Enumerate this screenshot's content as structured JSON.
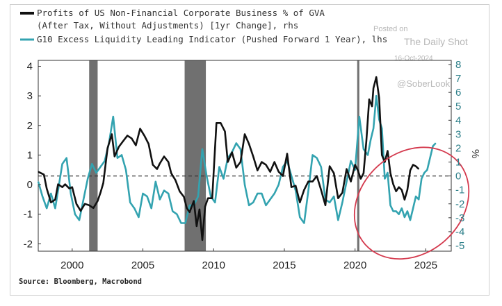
{
  "watermark": {
    "line1": "Posted on",
    "line2": "The Daily Shot",
    "line3": "16-Oct-2024",
    "handle": "@SoberLook"
  },
  "source": "Source: Bloomberg, Macrobond",
  "colors": {
    "profits": "#111111",
    "liquidity": "#33a3b0",
    "recession": "#707070",
    "highlight": "#d43a4e",
    "right_ticks": "#2b7e88"
  },
  "chart_data": {
    "type": "line",
    "xlim": [
      1997.6,
      2026.8
    ],
    "x_ticks": [
      "2000",
      "2005",
      "2010",
      "2015",
      "2020",
      "2025"
    ],
    "y_left": {
      "lim": [
        -2.25,
        4.2
      ],
      "ticks": [
        "-2",
        "-1",
        "0",
        "1",
        "2",
        "3",
        "4"
      ]
    },
    "y_right": {
      "lim": [
        -5.4,
        8.3
      ],
      "ticks": [
        "-5",
        "-4",
        "-3",
        "-2",
        "-1",
        "0",
        "1",
        "2",
        "3",
        "4",
        "5",
        "6",
        "7",
        "8"
      ]
    },
    "right_axis_symbol": "%",
    "reference_line": {
      "axis": "right",
      "value": 0,
      "style": "dashed"
    },
    "recession_bands": [
      [
        2001.2,
        2001.8
      ],
      [
        2007.95,
        2009.45
      ],
      [
        2020.15,
        2020.3
      ]
    ],
    "highlight_ellipse": {
      "center_x": 2024.0,
      "center_y_right": -1.95,
      "x_radius": 4.4,
      "y_radius_right": 3.6,
      "rotation_deg": -42
    },
    "series": [
      {
        "name": "Profits of US Non-Financial Corporate Business % of GVA",
        "name_line2": "(After Tax, Without Adjustments) [1yr Change], rhs",
        "axis": "right",
        "x": [
          1997.6,
          1998.0,
          1998.2,
          1998.5,
          1998.8,
          1999.0,
          1999.3,
          1999.5,
          1999.8,
          2000.0,
          2000.3,
          2000.6,
          2000.9,
          2001.2,
          2001.5,
          2001.8,
          2002.0,
          2002.2,
          2002.5,
          2002.8,
          2003.0,
          2003.3,
          2003.6,
          2003.9,
          2004.2,
          2004.5,
          2004.8,
          2005.1,
          2005.4,
          2005.7,
          2006.0,
          2006.2,
          2006.5,
          2006.8,
          2007.0,
          2007.3,
          2007.6,
          2007.9,
          2008.1,
          2008.3,
          2008.6,
          2008.8,
          2009.0,
          2009.2,
          2009.4,
          2009.6,
          2009.9,
          2010.2,
          2010.5,
          2010.8,
          2011.0,
          2011.3,
          2011.6,
          2011.9,
          2012.2,
          2012.5,
          2012.8,
          2013.1,
          2013.4,
          2013.7,
          2014.0,
          2014.3,
          2014.6,
          2014.9,
          2015.2,
          2015.5,
          2015.8,
          2016.1,
          2016.4,
          2016.7,
          2017.0,
          2017.3,
          2017.6,
          2017.9,
          2018.2,
          2018.5,
          2018.8,
          2019.1,
          2019.4,
          2019.7,
          2020.0,
          2020.2,
          2020.4,
          2020.6,
          2020.8,
          2021.0,
          2021.2,
          2021.3,
          2021.5,
          2021.7,
          2021.9,
          2022.1,
          2022.3,
          2022.5,
          2022.7,
          2022.9,
          2023.1,
          2023.3,
          2023.5,
          2023.7,
          2023.9,
          2024.1,
          2024.3,
          2024.5
        ],
        "y": [
          0.3,
          0.1,
          -0.9,
          -1.9,
          -1.7,
          -0.6,
          -0.8,
          -0.6,
          -0.9,
          -0.8,
          -2.0,
          -2.5,
          -2.0,
          -2.1,
          -2.3,
          -1.8,
          -1.2,
          -0.5,
          2.0,
          3.0,
          1.4,
          2.1,
          2.5,
          2.9,
          2.7,
          2.2,
          3.4,
          2.9,
          2.3,
          0.8,
          0.5,
          0.9,
          1.4,
          1.0,
          0.2,
          -0.3,
          -1.1,
          -1.5,
          -2.3,
          -2.6,
          -1.8,
          -3.6,
          -2.4,
          -4.6,
          -2.2,
          -1.6,
          -1.6,
          3.8,
          3.8,
          3.2,
          1.0,
          1.7,
          0.6,
          1.0,
          3.0,
          2.3,
          1.4,
          0.4,
          1.0,
          0.8,
          0.3,
          1.0,
          0.3,
          0.0,
          1.6,
          -0.8,
          -0.7,
          -1.9,
          -1.0,
          -0.4,
          -0.4,
          0.0,
          -1.0,
          -2.1,
          0.7,
          0.2,
          -1.6,
          -1.2,
          0.5,
          -0.4,
          0.8,
          0.4,
          -0.2,
          0.2,
          2.5,
          5.5,
          5.0,
          6.3,
          7.1,
          5.6,
          1.5,
          1.0,
          1.8,
          0.2,
          -0.6,
          -1.1,
          -0.8,
          -1.0,
          -1.7,
          -1.0,
          0.4,
          0.8,
          0.7,
          0.5
        ]
      },
      {
        "name": "G10 Excess Liquidity Leading Indicator (Pushed Forward 1 Year), lhs",
        "axis": "left",
        "x": [
          1997.6,
          1997.9,
          1998.2,
          1998.5,
          1998.8,
          1999.0,
          1999.3,
          1999.6,
          1999.9,
          2000.2,
          2000.5,
          2000.8,
          2001.1,
          2001.4,
          2001.7,
          2002.0,
          2002.3,
          2002.6,
          2002.9,
          2003.2,
          2003.5,
          2003.8,
          2004.1,
          2004.4,
          2004.7,
          2005.0,
          2005.3,
          2005.6,
          2005.9,
          2006.2,
          2006.5,
          2006.8,
          2007.1,
          2007.4,
          2007.7,
          2008.0,
          2008.3,
          2008.6,
          2008.9,
          2009.2,
          2009.5,
          2009.8,
          2010.1,
          2010.4,
          2010.7,
          2011.0,
          2011.3,
          2011.6,
          2011.9,
          2012.2,
          2012.5,
          2012.8,
          2013.1,
          2013.4,
          2013.7,
          2014.0,
          2014.3,
          2014.6,
          2014.9,
          2015.2,
          2015.5,
          2015.8,
          2016.1,
          2016.4,
          2016.7,
          2017.0,
          2017.3,
          2017.6,
          2017.9,
          2018.2,
          2018.5,
          2018.8,
          2019.1,
          2019.4,
          2019.7,
          2020.0,
          2020.3,
          2020.6,
          2020.9,
          2021.1,
          2021.3,
          2021.5,
          2021.7,
          2021.9,
          2022.1,
          2022.3,
          2022.5,
          2022.7,
          2022.9,
          2023.1,
          2023.3,
          2023.5,
          2023.7,
          2023.9,
          2024.1,
          2024.3,
          2024.5,
          2024.7,
          2024.9,
          2025.1,
          2025.3,
          2025.5,
          2025.7
        ],
        "y": [
          0.1,
          -0.4,
          -0.8,
          -0.3,
          -0.8,
          -0.2,
          0.7,
          0.9,
          -0.3,
          -1.0,
          -1.2,
          -0.5,
          0.2,
          0.7,
          0.4,
          0.6,
          0.8,
          1.4,
          2.3,
          0.9,
          1.0,
          0.5,
          -0.6,
          -0.8,
          -1.1,
          -0.3,
          -0.4,
          -0.8,
          0.1,
          -0.5,
          -0.2,
          -0.3,
          -0.9,
          -1.0,
          -1.3,
          -1.3,
          -0.7,
          -0.7,
          -0.4,
          1.2,
          0.3,
          -0.4,
          -0.6,
          0.6,
          0.2,
          0.9,
          1.1,
          1.4,
          1.2,
          0.0,
          -0.7,
          -0.6,
          -0.3,
          -0.3,
          -0.7,
          -0.5,
          -0.3,
          0.0,
          0.6,
          0.8,
          0.3,
          -0.2,
          -1.1,
          -1.3,
          -0.2,
          1.0,
          0.9,
          0.6,
          -0.5,
          -0.6,
          -0.4,
          -1.2,
          -0.6,
          0.1,
          0.8,
          0.5,
          2.3,
          1.2,
          1.0,
          1.5,
          1.9,
          3.0,
          2.2,
          1.9,
          0.2,
          0.4,
          -0.7,
          -0.9,
          -0.9,
          -1.0,
          -0.8,
          -1.1,
          -0.9,
          -1.2,
          -0.8,
          -0.4,
          -0.5,
          0.2,
          0.4,
          0.5,
          0.9,
          1.3,
          1.4
        ]
      }
    ]
  }
}
